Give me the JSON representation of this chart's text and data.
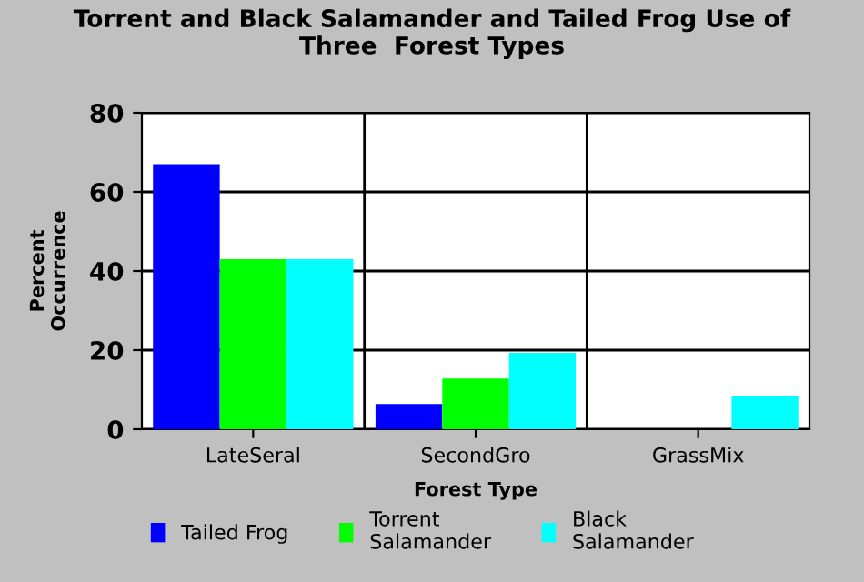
{
  "chart_data": {
    "type": "bar",
    "title": "Torrent and Black Salamander and Tailed Frog Use of\nThree  Forest Types",
    "xlabel": "Forest Type",
    "ylabel": "Percent\nOccurrence",
    "categories": [
      "LateSeral",
      "SecondGro",
      "GrassMix"
    ],
    "series": [
      {
        "name": "Tailed Frog",
        "color": "#0000ff",
        "values": [
          67,
          6.4,
          0
        ]
      },
      {
        "name": "Torrent\nSalamander",
        "color": "#00ff00",
        "values": [
          43,
          12.8,
          0
        ]
      },
      {
        "name": "Black\nSalamander",
        "color": "#00ffff",
        "values": [
          43,
          19.3,
          8.3
        ]
      }
    ],
    "ylim": [
      0,
      80
    ],
    "yticks": [
      0,
      20,
      40,
      60,
      80
    ],
    "grid": true,
    "legend": "bottom"
  }
}
